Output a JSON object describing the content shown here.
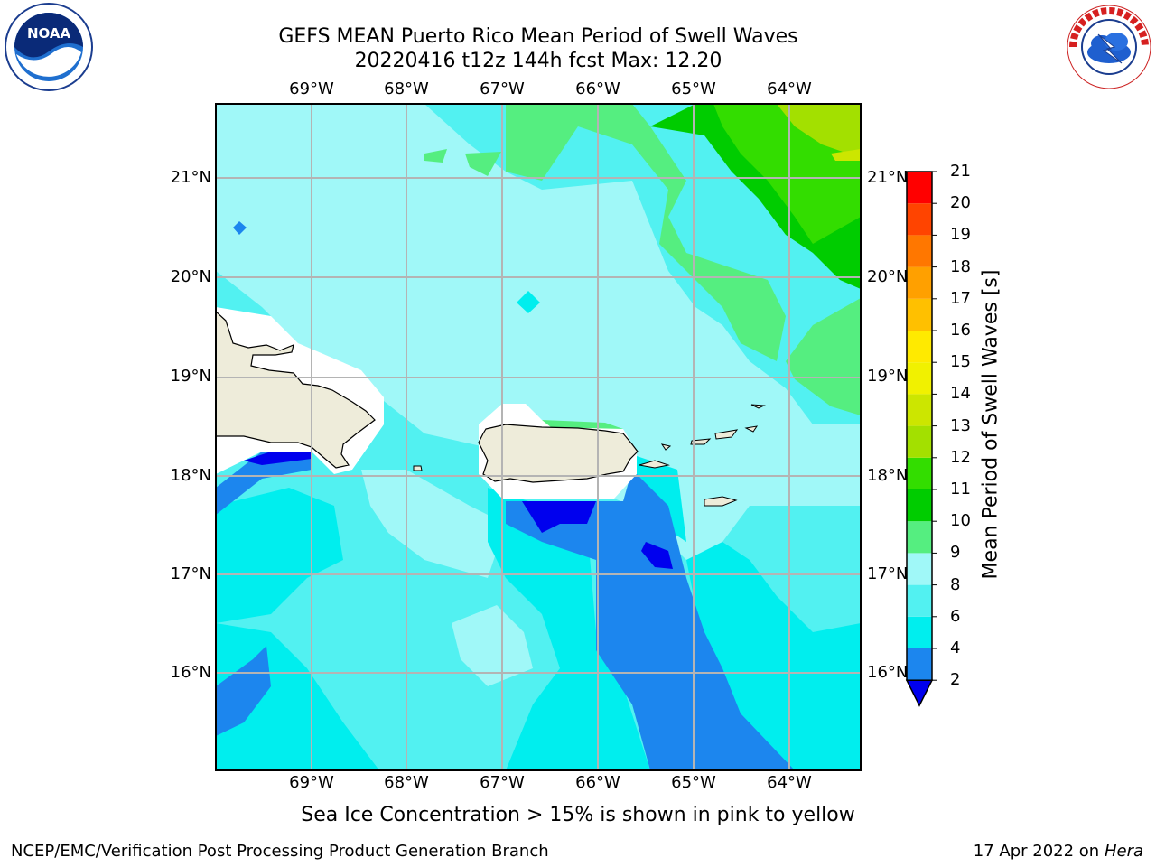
{
  "title_line1": "GEFS MEAN Puerto Rico Mean Period of Swell Waves",
  "title_line2": "20220416 t12z 144h fcst   Max: 12.20",
  "lon_labels": [
    "69°W",
    "68°W",
    "67°W",
    "66°W",
    "65°W",
    "64°W"
  ],
  "lat_labels": [
    "21°N",
    "20°N",
    "19°N",
    "18°N",
    "17°N",
    "16°N"
  ],
  "colorbar": {
    "title": "Mean Period of Swell Waves [s]",
    "levels": [
      "2",
      "4",
      "6",
      "8",
      "9",
      "10",
      "11",
      "12",
      "13",
      "14",
      "15",
      "16",
      "17",
      "18",
      "19",
      "20",
      "21"
    ],
    "colors": [
      "#0000ee",
      "#1c86ee",
      "#00eeee",
      "#52f1f1",
      "#a0f8f8",
      "#55ee80",
      "#00cc00",
      "#33dd00",
      "#a3e000",
      "#cce600",
      "#f1f100",
      "#ffea00",
      "#ffc000",
      "#ffa000",
      "#ff7700",
      "#ff4400",
      "#ff0000"
    ]
  },
  "map_colors": {
    "land": "#eeecda",
    "ice_mask": "#ffffff",
    "grid": "#b4b4b4"
  },
  "footer_note": "Sea Ice Concentration > 15% is shown in pink to yellow",
  "footer_left": "NCEP/EMC/Verification Post Processing Product Generation Branch",
  "footer_date": "17 Apr 2022 on ",
  "footer_host": "Hera",
  "logos": {
    "left": "noaa-logo",
    "right": "nws-logo"
  }
}
